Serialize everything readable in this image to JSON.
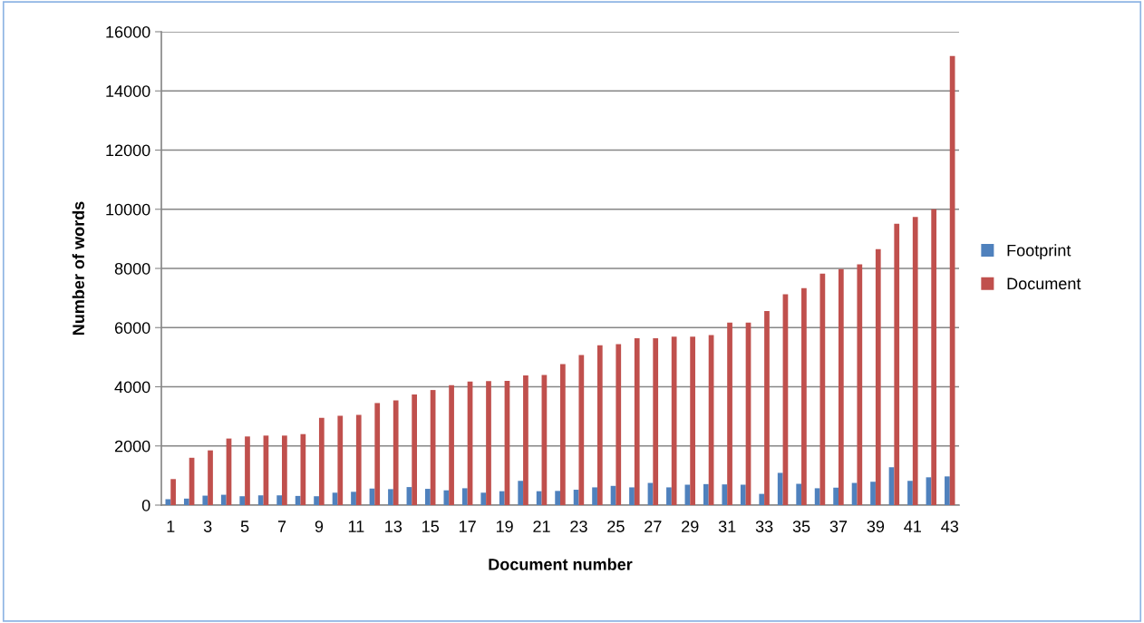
{
  "chart_data": {
    "type": "bar",
    "xlabel": "Document number",
    "ylabel": "Number of words",
    "categories": [
      "1",
      null,
      "3",
      null,
      "5",
      null,
      "7",
      null,
      "9",
      null,
      "11",
      null,
      "13",
      null,
      "15",
      null,
      "17",
      null,
      "19",
      null,
      "21",
      null,
      "23",
      null,
      "25",
      null,
      "27",
      null,
      "29",
      null,
      "31",
      null,
      "33",
      null,
      "35",
      null,
      "37",
      null,
      "39",
      null,
      "41",
      null,
      "43"
    ],
    "series": [
      {
        "name": "Footprint",
        "color": "#4f81bd",
        "values": [
          200,
          220,
          320,
          350,
          300,
          330,
          330,
          310,
          300,
          420,
          450,
          560,
          540,
          610,
          550,
          500,
          570,
          420,
          470,
          820,
          470,
          480,
          520,
          600,
          650,
          600,
          750,
          600,
          690,
          710,
          700,
          690,
          380,
          1090,
          720,
          570,
          590,
          750,
          790,
          1280,
          820,
          940,
          970
        ]
      },
      {
        "name": "Document",
        "color": "#c0504d",
        "values": [
          880,
          1600,
          1850,
          2250,
          2320,
          2350,
          2350,
          2400,
          2950,
          3020,
          3050,
          3450,
          3540,
          3740,
          3890,
          4050,
          4180,
          4190,
          4200,
          4380,
          4400,
          4770,
          5070,
          5400,
          5440,
          5640,
          5640,
          5690,
          5690,
          5750,
          6170,
          6170,
          6560,
          7130,
          7330,
          7820,
          7980,
          8140,
          8650,
          9510,
          9740,
          10000,
          15180
        ]
      }
    ],
    "ylim": [
      0,
      16000
    ],
    "yticks": [
      0,
      2000,
      4000,
      6000,
      8000,
      10000,
      12000,
      14000,
      16000
    ],
    "grid": "y",
    "legend": "right"
  }
}
